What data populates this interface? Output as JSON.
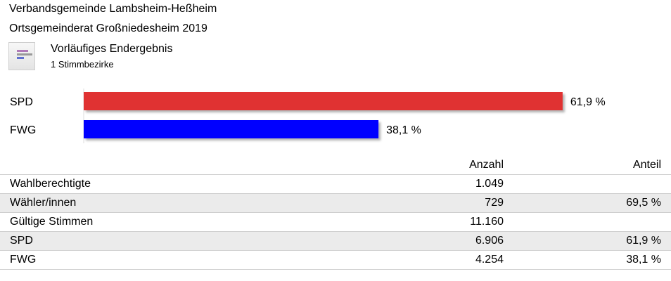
{
  "header": {
    "line1": "Verbandsgemeinde Lambsheim-Heßheim",
    "line2": "Ortsgemeinderat Großniedesheim 2019"
  },
  "result": {
    "icon": "bar-chart-icon",
    "title": "Vorläufiges Endergebnis",
    "subtitle": "1 Stimmbezirke"
  },
  "chart_data": {
    "type": "bar",
    "orientation": "horizontal",
    "categories": [
      "SPD",
      "FWG"
    ],
    "values": [
      61.9,
      38.1
    ],
    "value_labels": [
      "61,9 %",
      "38,1 %"
    ],
    "colors": [
      "#e03030",
      "#0000ff"
    ],
    "xlim": [
      0,
      100
    ],
    "grid": false,
    "legend": "none"
  },
  "table": {
    "headers": [
      "",
      "Anzahl",
      "Anteil"
    ],
    "rows": [
      {
        "label": "Wahlberechtigte",
        "count": "1.049",
        "share": ""
      },
      {
        "label": "Wähler/innen",
        "count": "729",
        "share": "69,5 %"
      },
      {
        "label": "Gültige Stimmen",
        "count": "11.160",
        "share": ""
      },
      {
        "label": "SPD",
        "count": "6.906",
        "share": "61,9 %"
      },
      {
        "label": "FWG",
        "count": "4.254",
        "share": "38,1 %"
      }
    ]
  }
}
